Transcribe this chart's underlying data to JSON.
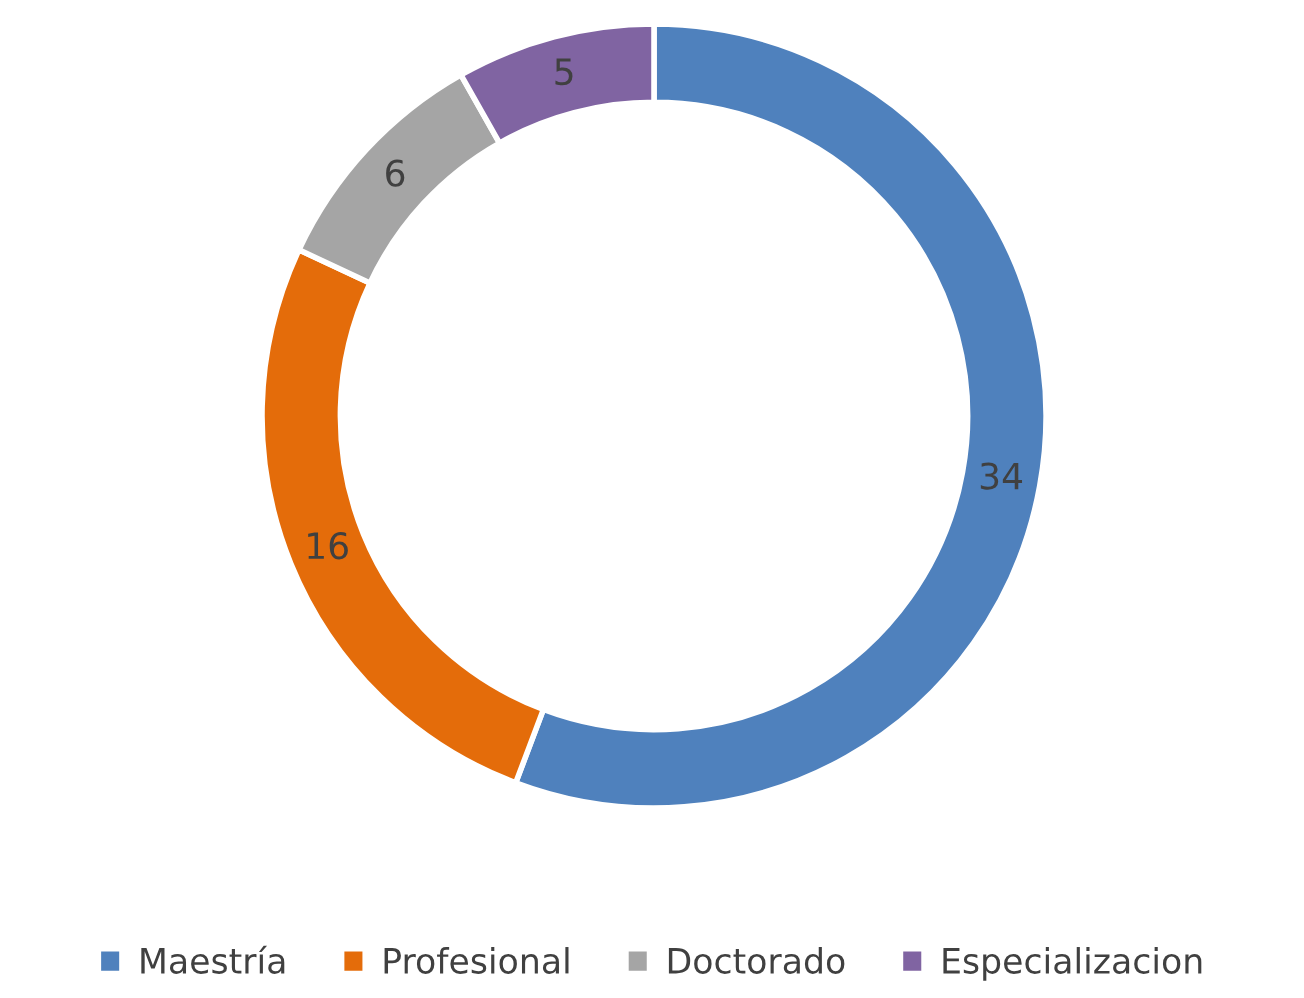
{
  "chart_data": {
    "type": "donut",
    "categories": [
      "Maestría",
      "Profesional",
      "Doctorado",
      "Especializacion"
    ],
    "values": [
      34,
      16,
      6,
      5
    ],
    "colors": [
      "#4f81bd",
      "#e46c0a",
      "#a5a5a5",
      "#8064a2"
    ],
    "data_labels": true,
    "legend": "bottom"
  }
}
